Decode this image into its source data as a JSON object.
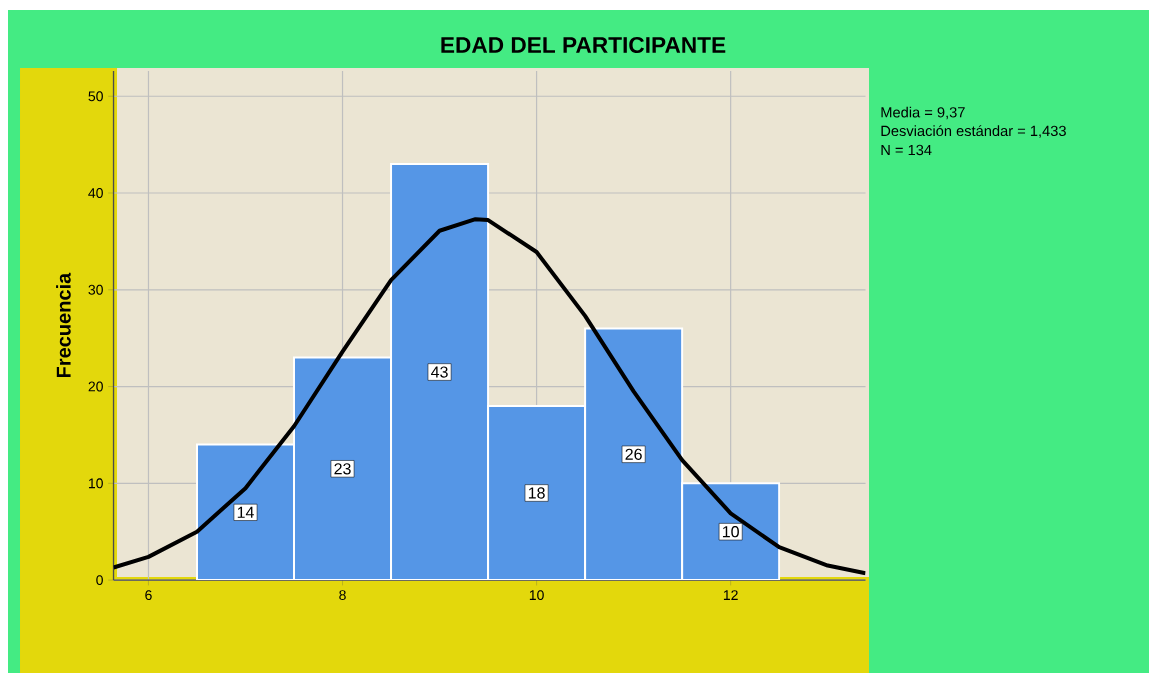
{
  "chart_data": {
    "type": "histogram",
    "title": "EDAD DEL PARTICIPANTE",
    "ylabel": "Frecuencia",
    "bins": [
      6.5,
      7.5,
      8.5,
      9.5,
      10.5,
      11.5,
      12.5
    ],
    "values": [
      14,
      23,
      43,
      18,
      26,
      10
    ],
    "color": "#5596e6",
    "value_labels": [
      "14",
      "23",
      "43",
      "18",
      "26",
      "10"
    ],
    "series": [
      {
        "type": "line",
        "color": "#000000",
        "x": [
          5.64,
          6.0,
          6.5,
          7.0,
          7.5,
          8.0,
          8.5,
          9.0,
          9.37,
          9.5,
          10.0,
          10.5,
          11.0,
          11.5,
          12.0,
          12.5,
          13.0,
          13.39
        ],
        "values": [
          1.3,
          2.4,
          5.0,
          9.5,
          15.9,
          23.6,
          31.0,
          36.1,
          37.3,
          37.2,
          33.9,
          27.3,
          19.5,
          12.4,
          6.9,
          3.4,
          1.5,
          0.7
        ]
      }
    ],
    "xlim": [
      5.64,
      13.39
    ],
    "ylim": [
      0,
      52.6
    ],
    "xticks": [
      6,
      8,
      10,
      12
    ],
    "yticks": [
      0,
      10,
      20,
      30,
      40,
      50
    ],
    "grid": true,
    "marker": "none",
    "line_style": "solid",
    "annotations": [
      "Media = 9,37",
      "Desviación estándar = 1,433",
      "N = 134"
    ]
  }
}
